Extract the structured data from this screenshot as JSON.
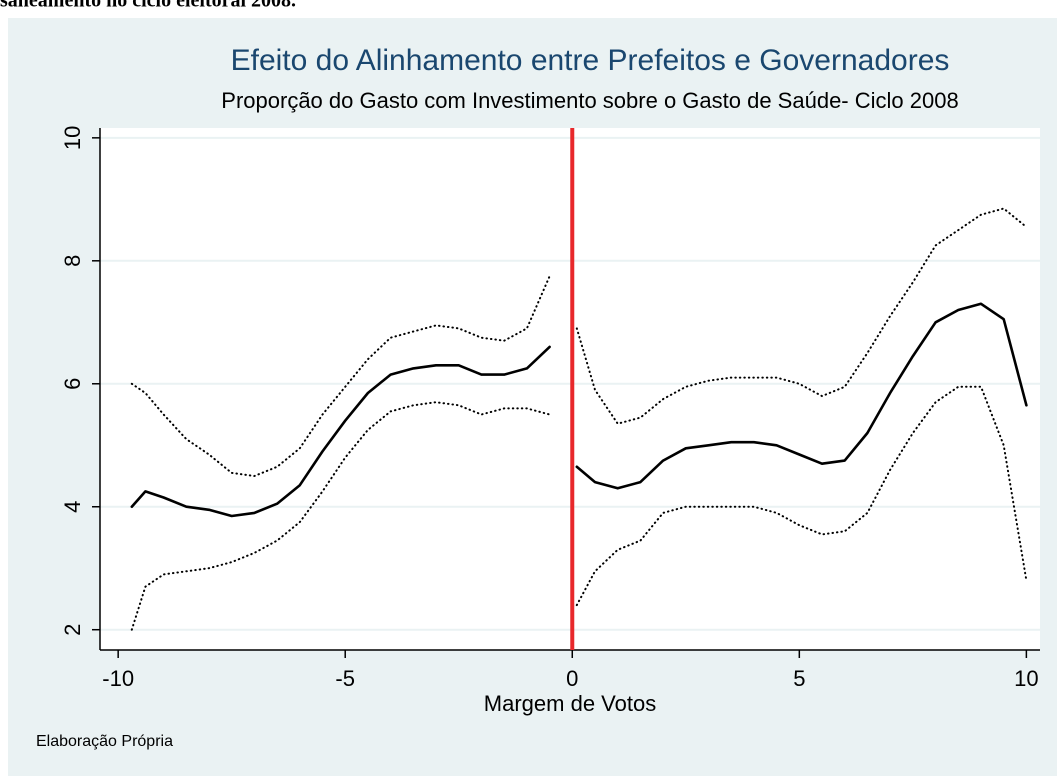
{
  "caption_above": "saneamento no ciclo eleitoral 2008.",
  "chart_data": {
    "type": "line",
    "title": "Efeito do Alinhamento entre Prefeitos e Governadores",
    "subtitle": "Proporção do Gasto com Investimento sobre o Gasto de Saúde- Ciclo 2008",
    "x_label": "Margem de Votos",
    "note": "Elaboração Própria",
    "xlim": [
      -10.4,
      10.3
    ],
    "xticks": [
      -10,
      -5,
      0,
      5,
      10
    ],
    "ylim": [
      1.67,
      10.16
    ],
    "yticks": [
      2,
      4,
      6,
      8,
      10
    ],
    "grid": true,
    "cutoff": 0,
    "cutoff_color": "#e8282b",
    "x": [
      -9.7,
      -9.4,
      -9,
      -8.5,
      -8,
      -7.5,
      -7,
      -6.5,
      -6,
      -5.5,
      -5,
      -4.5,
      -4,
      -3.5,
      -3,
      -2.5,
      -2,
      -1.5,
      -1,
      -0.5,
      0,
      0.1,
      0.5,
      1,
      1.5,
      2,
      2.5,
      3,
      3.5,
      4,
      4.5,
      5,
      5.5,
      6,
      6.5,
      7,
      7.5,
      8,
      8.5,
      9,
      9.5,
      10
    ],
    "series": [
      {
        "color": "#000000",
        "dash": "solid",
        "values": [
          4.0,
          4.25,
          4.15,
          4.0,
          3.95,
          3.85,
          3.9,
          4.05,
          4.35,
          4.9,
          5.4,
          5.85,
          6.15,
          6.25,
          6.3,
          6.3,
          6.15,
          6.15,
          6.25,
          6.6,
          null,
          4.65,
          4.4,
          4.3,
          4.4,
          4.75,
          4.95,
          5.0,
          5.05,
          5.05,
          5.0,
          4.85,
          4.7,
          4.75,
          5.2,
          5.85,
          6.45,
          7.0,
          7.2,
          7.3,
          7.05,
          5.65
        ]
      },
      {
        "color": "#000000",
        "dash": "dotted",
        "values": [
          6.0,
          5.85,
          5.5,
          5.1,
          4.85,
          4.55,
          4.5,
          4.65,
          4.95,
          5.5,
          5.95,
          6.4,
          6.75,
          6.85,
          6.95,
          6.9,
          6.75,
          6.7,
          6.9,
          7.75,
          null,
          6.9,
          5.9,
          5.35,
          5.45,
          5.75,
          5.95,
          6.05,
          6.1,
          6.1,
          6.1,
          6.0,
          5.8,
          5.95,
          6.5,
          7.1,
          7.65,
          8.25,
          8.5,
          8.75,
          8.85,
          8.55
        ]
      },
      {
        "color": "#000000",
        "dash": "dotted",
        "values": [
          2.0,
          2.7,
          2.9,
          2.95,
          3.0,
          3.1,
          3.25,
          3.45,
          3.75,
          4.25,
          4.8,
          5.25,
          5.55,
          5.65,
          5.7,
          5.65,
          5.5,
          5.6,
          5.6,
          5.5,
          null,
          2.4,
          2.95,
          3.3,
          3.45,
          3.9,
          4.0,
          4.0,
          4.0,
          4.0,
          3.9,
          3.7,
          3.55,
          3.6,
          3.9,
          4.6,
          5.2,
          5.7,
          5.95,
          5.95,
          5.0,
          2.8
        ]
      }
    ]
  }
}
